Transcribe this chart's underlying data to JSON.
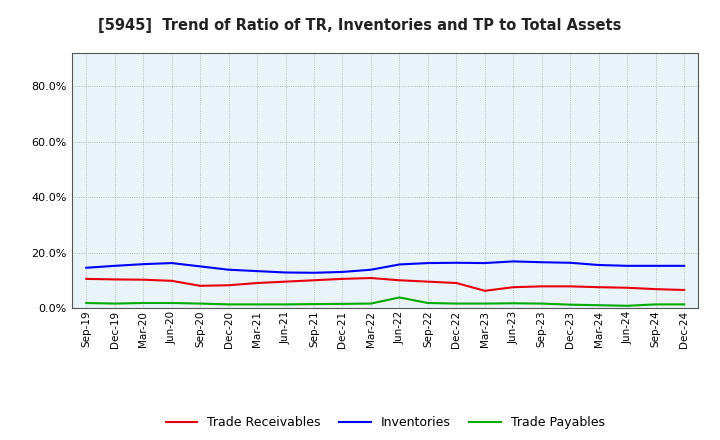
{
  "title": "[5945]  Trend of Ratio of TR, Inventories and TP to Total Assets",
  "x_labels": [
    "Sep-19",
    "Dec-19",
    "Mar-20",
    "Jun-20",
    "Sep-20",
    "Dec-20",
    "Mar-21",
    "Jun-21",
    "Sep-21",
    "Dec-21",
    "Mar-22",
    "Jun-22",
    "Sep-22",
    "Dec-22",
    "Mar-23",
    "Jun-23",
    "Sep-23",
    "Dec-23",
    "Mar-24",
    "Jun-24",
    "Sep-24",
    "Dec-24"
  ],
  "trade_receivables": [
    0.105,
    0.103,
    0.102,
    0.098,
    0.08,
    0.082,
    0.09,
    0.095,
    0.1,
    0.105,
    0.108,
    0.1,
    0.095,
    0.09,
    0.062,
    0.075,
    0.078,
    0.078,
    0.075,
    0.073,
    0.068,
    0.065
  ],
  "inventories": [
    0.145,
    0.152,
    0.158,
    0.162,
    0.15,
    0.138,
    0.133,
    0.128,
    0.127,
    0.13,
    0.138,
    0.157,
    0.162,
    0.163,
    0.162,
    0.168,
    0.165,
    0.163,
    0.155,
    0.152,
    0.152,
    0.152
  ],
  "trade_payables": [
    0.018,
    0.016,
    0.018,
    0.018,
    0.016,
    0.013,
    0.013,
    0.013,
    0.014,
    0.015,
    0.016,
    0.038,
    0.018,
    0.016,
    0.016,
    0.017,
    0.016,
    0.012,
    0.01,
    0.008,
    0.013,
    0.013
  ],
  "ylim_max": 0.92,
  "yticks": [
    0.0,
    0.2,
    0.4,
    0.6,
    0.8
  ],
  "color_tr": "#e8000d",
  "color_inv": "#0000ff",
  "color_tp": "#00aa00",
  "legend_labels": [
    "Trade Receivables",
    "Inventories",
    "Trade Payables"
  ],
  "background_color": "#ffffff",
  "plot_bg_color": "#e8f4f8",
  "grid_color": "#888888"
}
